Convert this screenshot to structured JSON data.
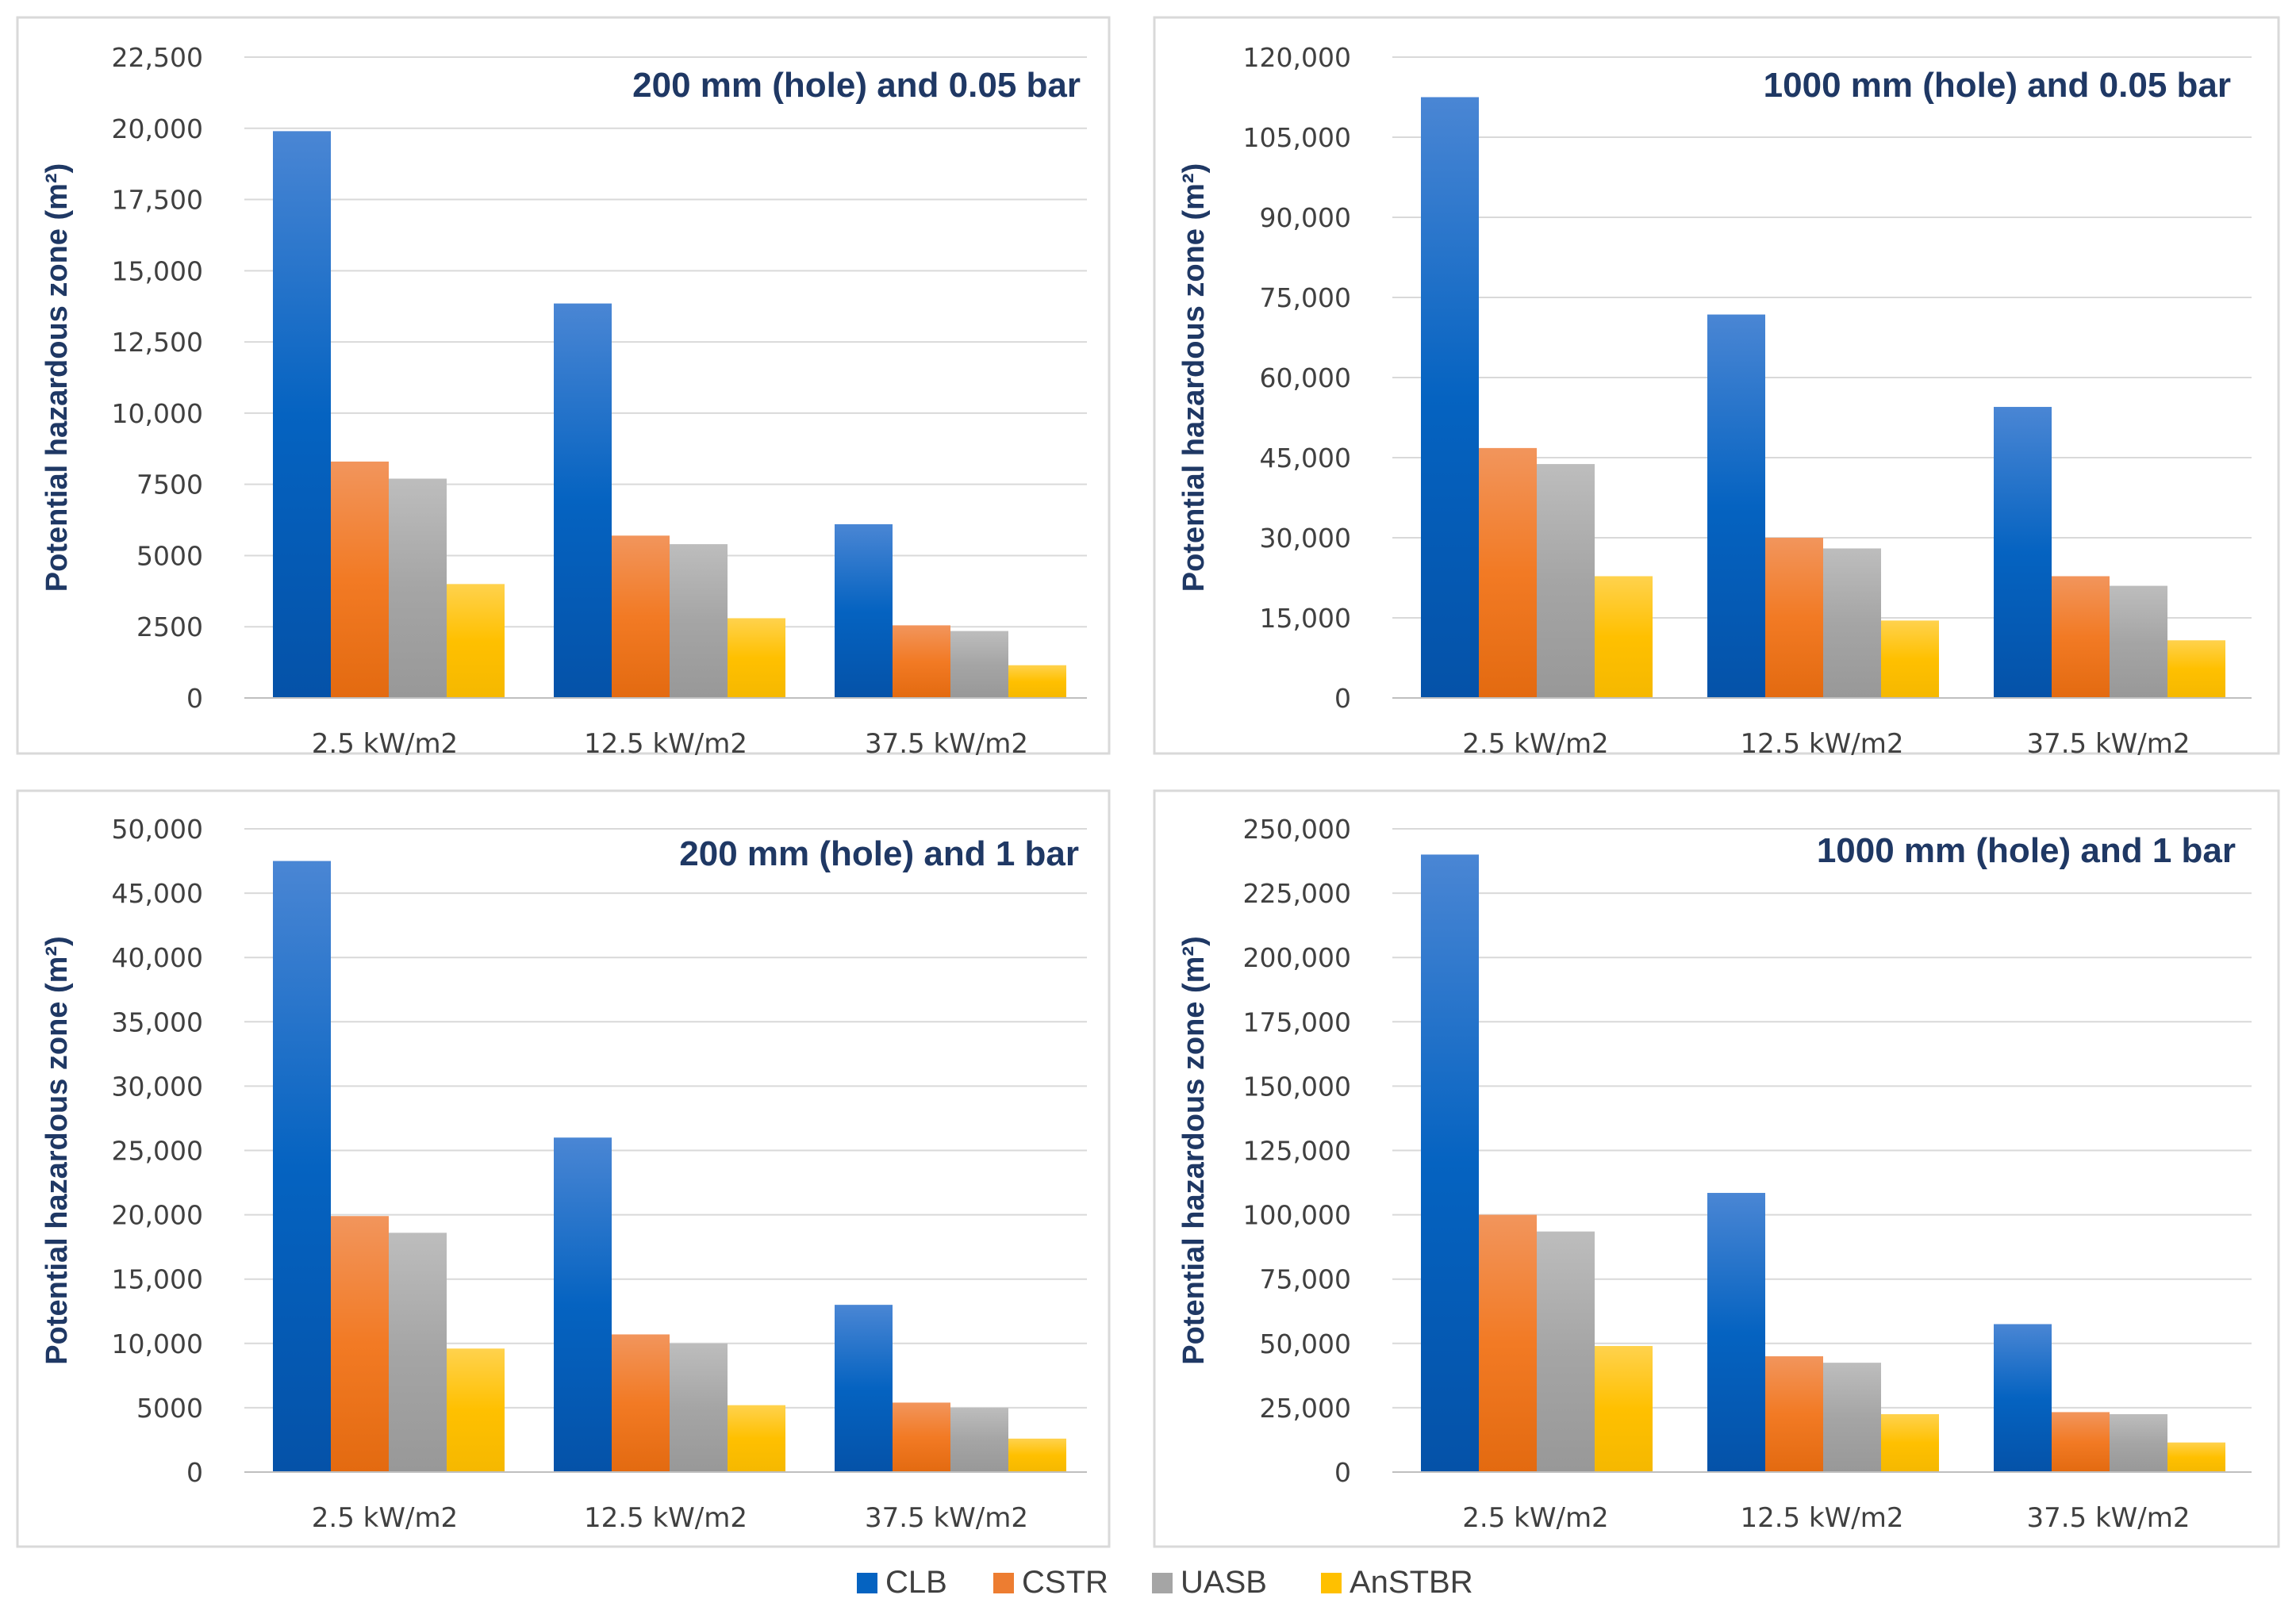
{
  "legend": [
    {
      "name": "CLB",
      "color": "#0563C1"
    },
    {
      "name": "CSTR",
      "color": "#ED7D31"
    },
    {
      "name": "UASB",
      "color": "#A5A5A5"
    },
    {
      "name": "AnSTBR",
      "color": "#FFC000"
    }
  ],
  "chart_data": [
    {
      "type": "bar",
      "title": "200 mm (hole) and 0.05 bar",
      "ylabel": "Potential hazardous zone (m²)",
      "xlabel": "",
      "categories": [
        "2.5 kW/m2",
        "12.5 kW/m2",
        "37.5 kW/m2"
      ],
      "ylim": [
        0,
        22500
      ],
      "yticks": [
        0,
        2500,
        5000,
        7500,
        10000,
        12500,
        15000,
        17500,
        20000,
        22500
      ],
      "ytick_labels": [
        "0",
        "2500",
        "5000",
        "7500",
        "10,000",
        "12,500",
        "15,000",
        "17,500",
        "20,000",
        "22,500"
      ],
      "series": [
        {
          "name": "CLB",
          "values": [
            19900,
            13850,
            6100
          ]
        },
        {
          "name": "CSTR",
          "values": [
            8300,
            5700,
            2550
          ]
        },
        {
          "name": "UASB",
          "values": [
            7700,
            5400,
            2350
          ]
        },
        {
          "name": "AnSTBR",
          "values": [
            4000,
            2800,
            1150
          ]
        }
      ]
    },
    {
      "type": "bar",
      "title": "1000 mm (hole) and 0.05 bar",
      "ylabel": "Potential hazardous zone (m²)",
      "xlabel": "",
      "categories": [
        "2.5 kW/m2",
        "12.5 kW/m2",
        "37.5 kW/m2"
      ],
      "ylim": [
        0,
        120000
      ],
      "yticks": [
        0,
        15000,
        30000,
        45000,
        60000,
        75000,
        90000,
        105000,
        120000
      ],
      "ytick_labels": [
        "0",
        "15,000",
        "30,000",
        "45,000",
        "60,000",
        "75,000",
        "90,000",
        "105,000",
        "120,000"
      ],
      "series": [
        {
          "name": "CLB",
          "values": [
            112500,
            71800,
            54500
          ]
        },
        {
          "name": "CSTR",
          "values": [
            46800,
            30000,
            22800
          ]
        },
        {
          "name": "UASB",
          "values": [
            43800,
            28000,
            21000
          ]
        },
        {
          "name": "AnSTBR",
          "values": [
            22800,
            14500,
            10800
          ]
        }
      ]
    },
    {
      "type": "bar",
      "title": "200 mm (hole) and 1 bar",
      "ylabel": "Potential hazardous zone (m²)",
      "xlabel": "",
      "categories": [
        "2.5 kW/m2",
        "12.5 kW/m2",
        "37.5 kW/m2"
      ],
      "ylim": [
        0,
        50000
      ],
      "yticks": [
        0,
        5000,
        10000,
        15000,
        20000,
        25000,
        30000,
        35000,
        40000,
        45000,
        50000
      ],
      "ytick_labels": [
        "0",
        "5000",
        "10,000",
        "15,000",
        "20,000",
        "25,000",
        "30,000",
        "35,000",
        "40,000",
        "45,000",
        "50,000"
      ],
      "series": [
        {
          "name": "CLB",
          "values": [
            47500,
            26000,
            13000
          ]
        },
        {
          "name": "CSTR",
          "values": [
            19900,
            10700,
            5400
          ]
        },
        {
          "name": "UASB",
          "values": [
            18600,
            10000,
            5000
          ]
        },
        {
          "name": "AnSTBR",
          "values": [
            9600,
            5200,
            2600
          ]
        }
      ]
    },
    {
      "type": "bar",
      "title": "1000 mm (hole) and 1 bar",
      "ylabel": "Potential hazardous zone (m²)",
      "xlabel": "",
      "categories": [
        "2.5 kW/m2",
        "12.5 kW/m2",
        "37.5 kW/m2"
      ],
      "ylim": [
        0,
        250000
      ],
      "yticks": [
        0,
        25000,
        50000,
        75000,
        100000,
        125000,
        150000,
        175000,
        200000,
        225000,
        250000
      ],
      "ytick_labels": [
        "0",
        "25,000",
        "50,000",
        "75,000",
        "100,000",
        "125,000",
        "150,000",
        "175,000",
        "200,000",
        "225,000",
        "250,000"
      ],
      "series": [
        {
          "name": "CLB",
          "values": [
            240000,
            108500,
            57500
          ]
        },
        {
          "name": "CSTR",
          "values": [
            100000,
            45000,
            23300
          ]
        },
        {
          "name": "UASB",
          "values": [
            93500,
            42500,
            22500
          ]
        },
        {
          "name": "AnSTBR",
          "values": [
            49000,
            22500,
            11500
          ]
        }
      ]
    }
  ]
}
